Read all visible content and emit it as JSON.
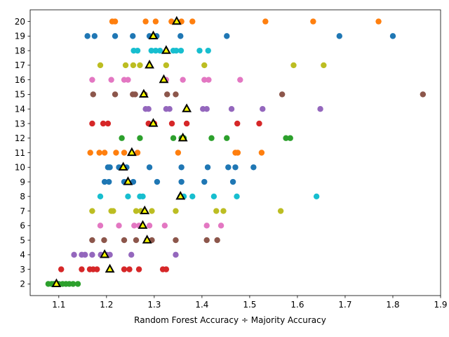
{
  "chart_data": {
    "type": "scatter",
    "xlabel": "Random Forest Accuracy ÷ Majority Accuracy",
    "ylabel": "",
    "title": "",
    "xlim": [
      1.04,
      1.9
    ],
    "ylim": [
      1.2,
      20.8
    ],
    "grid": false,
    "xticks": [
      "1.1",
      "1.2",
      "1.3",
      "1.4",
      "1.5",
      "1.6",
      "1.7",
      "1.8",
      "1.9"
    ],
    "yticks": [
      "2",
      "3",
      "4",
      "5",
      "6",
      "7",
      "8",
      "9",
      "10",
      "11",
      "12",
      "13",
      "14",
      "15",
      "16",
      "17",
      "18",
      "19",
      "20"
    ],
    "series": [
      {
        "color": "#1f77b4",
        "points": [
          [
            1.16,
            19
          ],
          [
            1.175,
            19
          ],
          [
            1.218,
            19
          ],
          [
            1.255,
            19
          ],
          [
            1.29,
            19
          ],
          [
            1.305,
            19
          ],
          [
            1.355,
            19
          ],
          [
            1.452,
            19
          ],
          [
            1.688,
            19
          ],
          [
            1.8,
            19
          ],
          [
            1.203,
            10
          ],
          [
            1.207,
            10
          ],
          [
            1.226,
            10
          ],
          [
            1.233,
            10
          ],
          [
            1.242,
            10
          ],
          [
            1.29,
            10
          ],
          [
            1.357,
            10
          ],
          [
            1.412,
            10
          ],
          [
            1.455,
            10
          ],
          [
            1.47,
            10
          ],
          [
            1.508,
            10
          ],
          [
            1.196,
            9
          ],
          [
            1.205,
            9
          ],
          [
            1.237,
            9
          ],
          [
            1.244,
            9
          ],
          [
            1.256,
            9
          ],
          [
            1.306,
            9
          ],
          [
            1.357,
            9
          ],
          [
            1.405,
            9
          ],
          [
            1.465,
            9
          ]
        ]
      },
      {
        "color": "#ff7f0e",
        "points": [
          [
            1.212,
            20
          ],
          [
            1.218,
            20
          ],
          [
            1.282,
            20
          ],
          [
            1.303,
            20
          ],
          [
            1.336,
            20
          ],
          [
            1.357,
            20
          ],
          [
            1.38,
            20
          ],
          [
            1.533,
            20
          ],
          [
            1.633,
            20
          ],
          [
            1.77,
            20
          ],
          [
            1.166,
            11
          ],
          [
            1.185,
            11
          ],
          [
            1.196,
            11
          ],
          [
            1.22,
            11
          ],
          [
            1.237,
            11
          ],
          [
            1.265,
            11
          ],
          [
            1.35,
            11
          ],
          [
            1.47,
            11
          ],
          [
            1.475,
            11
          ],
          [
            1.525,
            11
          ]
        ]
      },
      {
        "color": "#2ca02c",
        "points": [
          [
            1.078,
            2
          ],
          [
            1.085,
            2
          ],
          [
            1.09,
            2
          ],
          [
            1.1,
            2
          ],
          [
            1.108,
            2
          ],
          [
            1.115,
            2
          ],
          [
            1.122,
            2
          ],
          [
            1.13,
            2
          ],
          [
            1.14,
            2
          ],
          [
            1.232,
            12
          ],
          [
            1.27,
            12
          ],
          [
            1.34,
            12
          ],
          [
            1.357,
            12
          ],
          [
            1.362,
            12
          ],
          [
            1.42,
            12
          ],
          [
            1.452,
            12
          ],
          [
            1.576,
            12
          ],
          [
            1.585,
            12
          ]
        ]
      },
      {
        "color": "#d62728",
        "points": [
          [
            1.105,
            3
          ],
          [
            1.148,
            3
          ],
          [
            1.165,
            3
          ],
          [
            1.172,
            3
          ],
          [
            1.18,
            3
          ],
          [
            1.237,
            3
          ],
          [
            1.248,
            3
          ],
          [
            1.268,
            3
          ],
          [
            1.318,
            3
          ],
          [
            1.325,
            3
          ],
          [
            1.17,
            13
          ],
          [
            1.193,
            13
          ],
          [
            1.203,
            13
          ],
          [
            1.288,
            13
          ],
          [
            1.3,
            13
          ],
          [
            1.337,
            13
          ],
          [
            1.368,
            13
          ],
          [
            1.474,
            13
          ],
          [
            1.52,
            13
          ]
        ]
      },
      {
        "color": "#9467bd",
        "points": [
          [
            1.132,
            4
          ],
          [
            1.148,
            4
          ],
          [
            1.155,
            4
          ],
          [
            1.17,
            4
          ],
          [
            1.188,
            4
          ],
          [
            1.2,
            4
          ],
          [
            1.207,
            4
          ],
          [
            1.252,
            4
          ],
          [
            1.345,
            4
          ],
          [
            1.282,
            14
          ],
          [
            1.288,
            14
          ],
          [
            1.325,
            14
          ],
          [
            1.332,
            14
          ],
          [
            1.402,
            14
          ],
          [
            1.41,
            14
          ],
          [
            1.462,
            14
          ],
          [
            1.527,
            14
          ],
          [
            1.648,
            14
          ]
        ]
      },
      {
        "color": "#8c564b",
        "points": [
          [
            1.17,
            5
          ],
          [
            1.195,
            5
          ],
          [
            1.237,
            5
          ],
          [
            1.262,
            5
          ],
          [
            1.285,
            5
          ],
          [
            1.295,
            5
          ],
          [
            1.345,
            5
          ],
          [
            1.41,
            5
          ],
          [
            1.432,
            5
          ],
          [
            1.172,
            15
          ],
          [
            1.218,
            15
          ],
          [
            1.255,
            15
          ],
          [
            1.26,
            15
          ],
          [
            1.28,
            15
          ],
          [
            1.327,
            15
          ],
          [
            1.345,
            15
          ],
          [
            1.568,
            15
          ],
          [
            1.863,
            15
          ]
        ]
      },
      {
        "color": "#e377c2",
        "points": [
          [
            1.187,
            6
          ],
          [
            1.226,
            6
          ],
          [
            1.258,
            6
          ],
          [
            1.268,
            6
          ],
          [
            1.275,
            6
          ],
          [
            1.29,
            6
          ],
          [
            1.322,
            6
          ],
          [
            1.41,
            6
          ],
          [
            1.44,
            6
          ],
          [
            1.17,
            16
          ],
          [
            1.21,
            16
          ],
          [
            1.237,
            16
          ],
          [
            1.245,
            16
          ],
          [
            1.325,
            16
          ],
          [
            1.36,
            16
          ],
          [
            1.405,
            16
          ],
          [
            1.414,
            16
          ],
          [
            1.48,
            16
          ]
        ]
      },
      {
        "color": "#bcbd22",
        "points": [
          [
            1.17,
            7
          ],
          [
            1.21,
            7
          ],
          [
            1.214,
            7
          ],
          [
            1.262,
            7
          ],
          [
            1.272,
            7
          ],
          [
            1.295,
            7
          ],
          [
            1.345,
            7
          ],
          [
            1.43,
            7
          ],
          [
            1.445,
            7
          ],
          [
            1.565,
            7
          ],
          [
            1.187,
            17
          ],
          [
            1.24,
            17
          ],
          [
            1.256,
            17
          ],
          [
            1.27,
            17
          ],
          [
            1.325,
            17
          ],
          [
            1.405,
            17
          ],
          [
            1.592,
            17
          ],
          [
            1.655,
            17
          ]
        ]
      },
      {
        "color": "#17becf",
        "points": [
          [
            1.187,
            8
          ],
          [
            1.245,
            8
          ],
          [
            1.27,
            8
          ],
          [
            1.276,
            8
          ],
          [
            1.355,
            8
          ],
          [
            1.362,
            8
          ],
          [
            1.38,
            8
          ],
          [
            1.425,
            8
          ],
          [
            1.473,
            8
          ],
          [
            1.64,
            8
          ],
          [
            1.257,
            18
          ],
          [
            1.265,
            18
          ],
          [
            1.294,
            18
          ],
          [
            1.303,
            18
          ],
          [
            1.312,
            18
          ],
          [
            1.34,
            18
          ],
          [
            1.346,
            18
          ],
          [
            1.356,
            18
          ],
          [
            1.395,
            18
          ],
          [
            1.413,
            18
          ]
        ]
      }
    ],
    "highlight": {
      "marker": "triangle",
      "color": "#ffff00",
      "edge": "#000000",
      "points": [
        [
          1.095,
          2
        ],
        [
          1.207,
          3
        ],
        [
          1.196,
          4
        ],
        [
          1.285,
          5
        ],
        [
          1.276,
          6
        ],
        [
          1.28,
          7
        ],
        [
          1.355,
          8
        ],
        [
          1.245,
          9
        ],
        [
          1.235,
          10
        ],
        [
          1.253,
          11
        ],
        [
          1.36,
          12
        ],
        [
          1.298,
          13
        ],
        [
          1.368,
          14
        ],
        [
          1.278,
          15
        ],
        [
          1.32,
          16
        ],
        [
          1.29,
          17
        ],
        [
          1.325,
          18
        ],
        [
          1.298,
          19
        ],
        [
          1.347,
          20
        ]
      ]
    }
  }
}
